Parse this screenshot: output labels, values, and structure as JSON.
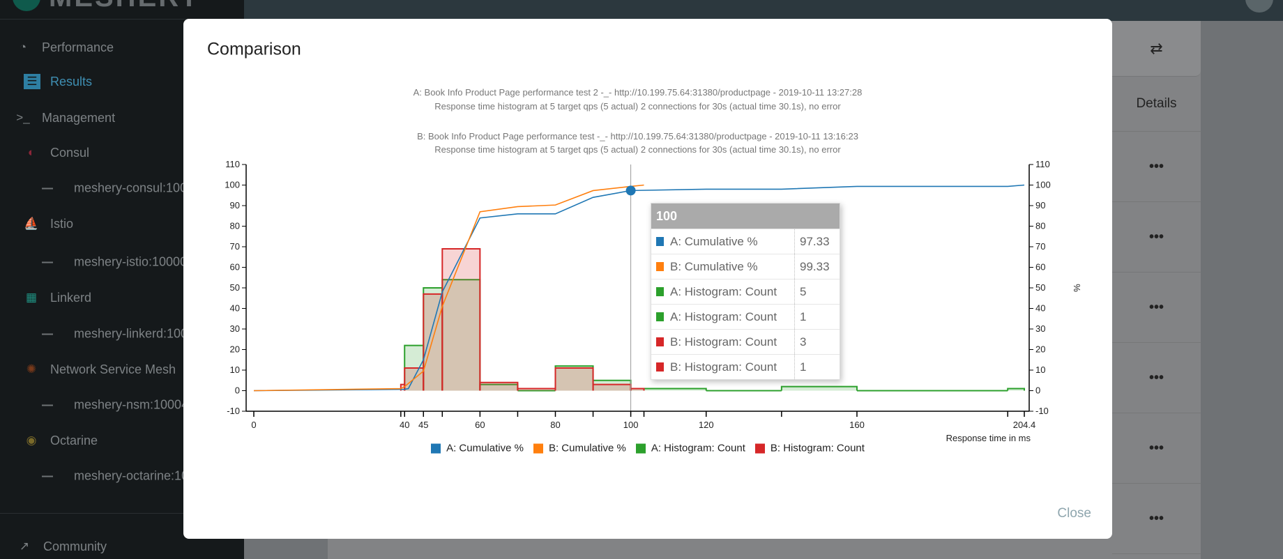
{
  "sidebar": {
    "logo_text": "MESHERY",
    "items": [
      {
        "label": "Performance",
        "icon": "speedometer-icon"
      },
      {
        "label": "Results",
        "icon": "results-icon"
      },
      {
        "label": "Management",
        "icon": "terminal-icon"
      },
      {
        "label": "Consul",
        "icon": "consul-icon"
      },
      {
        "label": "meshery-consul:100"
      },
      {
        "label": "Istio",
        "icon": "istio-sail-icon"
      },
      {
        "label": "meshery-istio:10000"
      },
      {
        "label": "Linkerd",
        "icon": "linkerd-icon"
      },
      {
        "label": "meshery-linkerd:100"
      },
      {
        "label": "Network Service Mesh",
        "icon": "nsm-icon"
      },
      {
        "label": "meshery-nsm:10004"
      },
      {
        "label": "Octarine",
        "icon": "octarine-icon"
      },
      {
        "label": "meshery-octarine:10"
      },
      {
        "label": "Community",
        "icon": "external-link-icon"
      }
    ]
  },
  "background": {
    "details_header": "Details",
    "compare_icon": "compare-arrows-icon",
    "row_menu_icon": "more-horizontal-icon"
  },
  "modal": {
    "title": "Comparison",
    "close_label": "Close"
  },
  "tooltip": {
    "header": "100",
    "rows": [
      {
        "label": "A: Cumulative %",
        "value": "97.33",
        "color": "#1f77b4"
      },
      {
        "label": "B: Cumulative %",
        "value": "99.33",
        "color": "#ff7f0e"
      },
      {
        "label": "A: Histogram: Count",
        "value": "5",
        "color": "#2ca02c"
      },
      {
        "label": "A: Histogram: Count",
        "value": "1",
        "color": "#2ca02c"
      },
      {
        "label": "B: Histogram: Count",
        "value": "3",
        "color": "#d62728"
      },
      {
        "label": "B: Histogram: Count",
        "value": "1",
        "color": "#d62728"
      }
    ]
  },
  "chart_data": {
    "type": "line",
    "title_lines": [
      "A: Book Info Product Page performance test 2 -_- http://10.199.75.64:31380/productpage - 2019-10-11 13:27:28",
      "Response time histogram at 5 target qps (5 actual) 2 connections for 30s (actual time 30.1s), no error",
      "B: Book Info Product Page performance test -_- http://10.199.75.64:31380/productpage - 2019-10-11 13:16:23",
      "Response time histogram at 5 target qps (5 actual) 2 connections for 30s (actual time 30.1s), no error"
    ],
    "xlabel": "Response time in ms",
    "y2label": "%",
    "xlim": [
      0,
      204.4
    ],
    "ylim": [
      -10,
      110
    ],
    "y_ticks": [
      -10,
      0,
      10,
      20,
      30,
      40,
      50,
      60,
      70,
      80,
      90,
      100,
      110
    ],
    "x_tick_labels": [
      "0",
      "40",
      "45",
      "60",
      "80",
      "100",
      "120",
      "160",
      "204.4"
    ],
    "x_ticks": [
      0,
      39,
      40,
      45,
      50,
      60,
      70,
      80,
      90,
      100,
      103.5,
      120,
      140,
      160,
      200,
      204.4
    ],
    "legend_position": "bottom",
    "hover_x": 100,
    "series": [
      {
        "name": "A: Cumulative %",
        "kind": "line",
        "color": "#1f77b4",
        "x": [
          0,
          40,
          41,
          45,
          50,
          60,
          70,
          80,
          90,
          100,
          120,
          140,
          160,
          200,
          204.4
        ],
        "y": [
          0,
          0.67,
          1,
          15,
          48,
          84,
          86,
          86,
          94,
          97.33,
          98,
          98,
          99.33,
          99.33,
          100
        ]
      },
      {
        "name": "B: Cumulative %",
        "kind": "line",
        "color": "#ff7f0e",
        "x": [
          0,
          39,
          40,
          45,
          50,
          60,
          70,
          80,
          90,
          100,
          103.5
        ],
        "y": [
          0,
          1,
          2,
          9.5,
          41,
          87,
          89.5,
          90.3,
          97.3,
          99.33,
          100
        ]
      },
      {
        "name": "A: Histogram: Count",
        "kind": "histogram",
        "color": "#2ca02c",
        "bins": [
          [
            40,
            45,
            22
          ],
          [
            45,
            50,
            50
          ],
          [
            50,
            60,
            54
          ],
          [
            60,
            70,
            3
          ],
          [
            70,
            80,
            0
          ],
          [
            80,
            90,
            12
          ],
          [
            90,
            100,
            5
          ],
          [
            100,
            120,
            1
          ],
          [
            120,
            140,
            0
          ],
          [
            140,
            160,
            2
          ],
          [
            160,
            200,
            0
          ],
          [
            200,
            204.4,
            1
          ]
        ]
      },
      {
        "name": "B: Histogram: Count",
        "kind": "histogram",
        "color": "#d62728",
        "bins": [
          [
            39,
            40,
            3
          ],
          [
            40,
            45,
            11
          ],
          [
            45,
            50,
            47
          ],
          [
            50,
            60,
            69
          ],
          [
            60,
            70,
            4
          ],
          [
            70,
            80,
            1
          ],
          [
            80,
            90,
            11
          ],
          [
            90,
            100,
            3
          ],
          [
            100,
            103.5,
            1
          ]
        ]
      }
    ]
  }
}
